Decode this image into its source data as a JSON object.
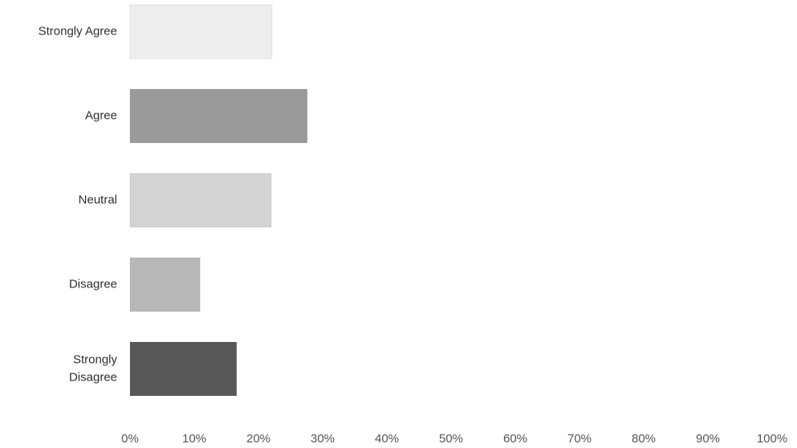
{
  "chart_data": {
    "type": "bar",
    "orientation": "horizontal",
    "categories": [
      [
        "Strongly Agree"
      ],
      [
        "Agree"
      ],
      [
        "Neutral"
      ],
      [
        "Disagree"
      ],
      [
        "Strongly",
        "Disagree"
      ]
    ],
    "values": [
      22.1,
      27.6,
      22.0,
      10.9,
      16.6
    ],
    "value_unit": "percent",
    "xlim": [
      0,
      100
    ],
    "x_ticks": [
      "0%",
      "10%",
      "20%",
      "30%",
      "40%",
      "50%",
      "60%",
      "70%",
      "80%",
      "90%",
      "100%"
    ],
    "title": "",
    "xlabel": "",
    "ylabel": "",
    "grid": false,
    "legend": "none",
    "bar_colors": [
      "#ededed",
      "#9a9a9a",
      "#d3d3d3",
      "#b7b7b7",
      "#585858"
    ]
  }
}
